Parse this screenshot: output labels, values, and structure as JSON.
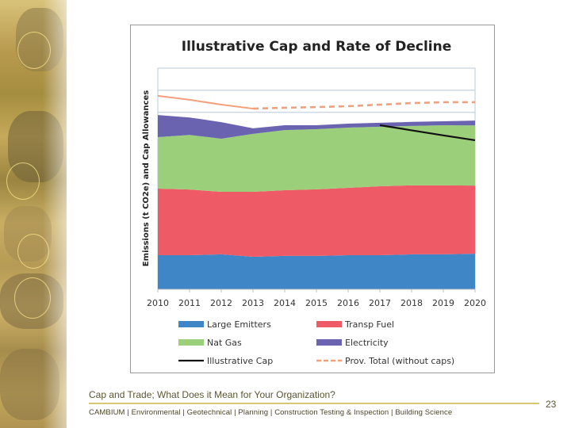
{
  "footer": {
    "title": "Cap and Trade; What Does it Mean for Your Organization?",
    "links": "CAMBIUM  |  Environmental  | Geotechnical | Planning  | Construction Testing & Inspection | Building Science",
    "page_number": "23"
  },
  "colors": {
    "large_emitters": "#3f86c6",
    "transp_fuel": "#ee5a66",
    "nat_gas": "#9ccf7a",
    "electricity": "#6a63b0",
    "illustrative_cap": "#111111",
    "prov_total": "#f2a07a",
    "gridline": "#b8c8dc"
  },
  "chart_data": {
    "type": "area",
    "title": "Illustrative Cap and Rate of Decline",
    "xlabel": "",
    "ylabel": "Emissions (t CO2e) and Cap Allowances",
    "x": [
      "2010",
      "2011",
      "2012",
      "2013",
      "2014",
      "2015",
      "2016",
      "2017",
      "2018",
      "2019",
      "2020"
    ],
    "ylim": [
      0,
      100
    ],
    "y_units": "relative (no y tick labels shown)",
    "grid": true,
    "stacked": true,
    "series": [
      {
        "name": "Large Emitters",
        "kind": "area",
        "values": [
          15.4,
          15.4,
          15.8,
          14.7,
          15.1,
          15.1,
          15.4,
          15.4,
          15.8,
          15.8,
          16.1
        ]
      },
      {
        "name": "Transp Fuel",
        "kind": "area",
        "values": [
          30.1,
          29.7,
          28.3,
          29.4,
          29.7,
          30.1,
          30.5,
          31.2,
          31.2,
          31.2,
          30.8
        ]
      },
      {
        "name": "Nat Gas",
        "kind": "area",
        "values": [
          23.3,
          24.7,
          24.0,
          26.2,
          27.2,
          27.2,
          27.2,
          26.9,
          26.9,
          27.2,
          27.2
        ]
      },
      {
        "name": "Electricity",
        "kind": "area",
        "values": [
          10.0,
          7.9,
          7.5,
          2.5,
          2.2,
          1.8,
          1.8,
          1.8,
          1.8,
          1.8,
          2.2
        ]
      },
      {
        "name": "Illustrative Cap",
        "kind": "line",
        "x": [
          "2017",
          "2018",
          "2019",
          "2020"
        ],
        "values": [
          74.2,
          71.9,
          69.6,
          67.4
        ]
      },
      {
        "name": "Prov. Total (without caps)",
        "kind": "line",
        "values": [
          87.5,
          85.7,
          83.5,
          81.7,
          82.1,
          82.4,
          82.8,
          83.5,
          84.2,
          84.6,
          84.6
        ],
        "solid_until": "2013",
        "dashed_after": "2013"
      }
    ],
    "legend": {
      "placement": "bottom",
      "entries": [
        "Large Emitters",
        "Transp Fuel",
        "Nat Gas",
        "Electricity",
        "Illustrative Cap",
        "Prov. Total (without caps)"
      ]
    }
  }
}
